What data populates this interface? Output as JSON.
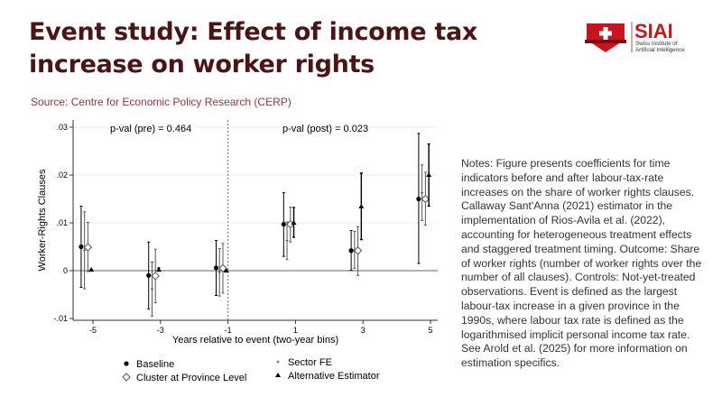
{
  "header": {
    "title": "Event study: Effect of income tax increase on worker rights",
    "source": "Source: Centre for Economic Policy Research (CERP)"
  },
  "logo": {
    "name": "SIAI",
    "subtitle1": "Swiss Institute of",
    "subtitle2": "Artificial Intelligence"
  },
  "notes": "Notes: Figure presents coefficients for time indicators before and after labour-tax-rate increases on the share of worker rights clauses. Callaway Sant'Anna (2021) estimator in the implementation of Rios-Avila et al. (2022), accounting for heterogeneous treatment effects and staggered treatment timing. Outcome: Share of worker rights (number of worker rights over the number of all clauses). Controls: Not-yet-treated observations. Event is defined as the largest labour-tax increase in a given province in the 1990s, where labour tax rate is defined as the logarithmised implicit personal income tax rate. See Arold et al. (2025) for more information on estimation specifics.",
  "chart_data": {
    "type": "scatter",
    "xlabel": "Years relative to event (two-year bins)",
    "ylabel": "Worker-Rights Clauses",
    "xlim": [
      -5.7,
      5.3
    ],
    "ylim": [
      -0.0115,
      0.0315
    ],
    "xticks": [
      -5,
      -3,
      -1,
      1,
      3,
      5
    ],
    "xtick_labels": [
      "-5",
      "-3",
      "-1",
      "1",
      "3",
      "5"
    ],
    "yticks": [
      -0.01,
      0,
      0.01,
      0.02,
      0.03
    ],
    "ytick_labels": [
      "-.01",
      "0",
      ".01",
      ".02",
      ".03"
    ],
    "vline": -1,
    "hline": 0,
    "annotations": [
      "p-val (pre) = 0.464",
      "p-val (post) = 0.023"
    ],
    "events": [
      -5,
      -3,
      -1,
      1,
      3,
      5
    ],
    "series": [
      {
        "name": "Baseline",
        "marker": "dot",
        "offset": -0.35,
        "color": "#000000",
        "points": [
          [
            0.005,
            -0.0035,
            0.0135
          ],
          [
            -0.001,
            -0.008,
            0.006
          ],
          [
            0.0006,
            -0.0052,
            0.0063
          ],
          [
            0.0097,
            0.003,
            0.0163
          ],
          [
            0.0042,
            0.0001,
            0.0084
          ],
          [
            0.015,
            0.0015,
            0.0287
          ]
        ]
      },
      {
        "name": "Sector FE",
        "marker": "plus",
        "offset": -0.25,
        "color": "#555555",
        "points": [
          [
            0.0043,
            -0.0038,
            0.0123
          ],
          [
            -0.0038,
            -0.0095,
            0.0018
          ],
          [
            -0.0003,
            -0.0053,
            0.0046
          ],
          [
            0.0063,
            0.0023,
            0.0102
          ],
          [
            0.0043,
            0.0005,
            0.0082
          ],
          [
            0.0163,
            0.0105,
            0.0221
          ]
        ]
      },
      {
        "name": "Cluster at Province Level",
        "marker": "diamond",
        "offset": -0.15,
        "color": "#555555",
        "points": [
          [
            0.0049,
            -0.0002,
            0.0101
          ],
          [
            -0.0011,
            -0.0067,
            0.0045
          ],
          [
            0.0005,
            -0.0047,
            0.0057
          ],
          [
            0.0097,
            0.006,
            0.0133
          ],
          [
            0.0042,
            -0.001,
            0.0092
          ],
          [
            0.015,
            0.0095,
            0.0206
          ]
        ]
      },
      {
        "name": "Alternative Estimator",
        "marker": "triangle",
        "offset": -0.05,
        "color": "#000000",
        "points": [
          [
            0.0002,
            0.0002,
            0.0002
          ],
          [
            0.0002,
            -0.0001,
            0.0006
          ],
          [
            0.0,
            0.0,
            0.0
          ],
          [
            0.01,
            0.007,
            0.0132
          ],
          [
            0.0134,
            0.0065,
            0.0204
          ],
          [
            0.02,
            0.0135,
            0.0265
          ]
        ]
      }
    ]
  }
}
